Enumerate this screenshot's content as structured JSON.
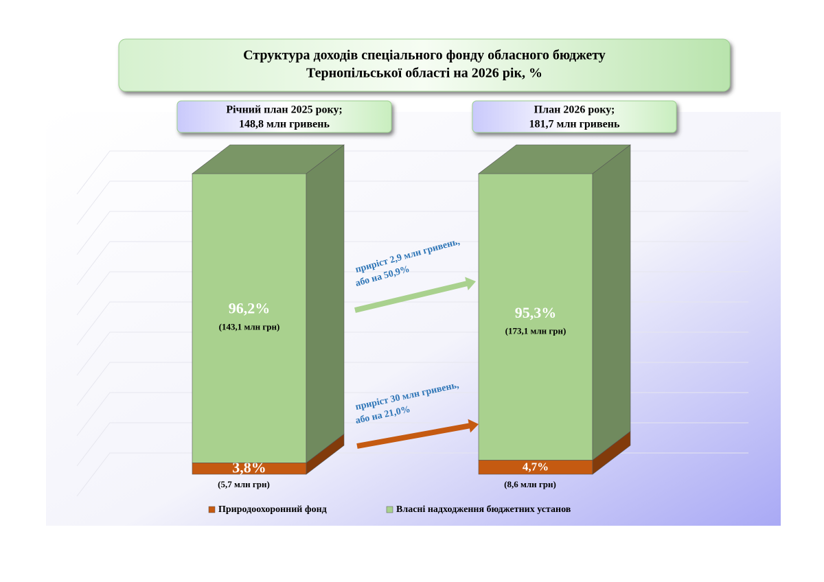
{
  "chart_data": {
    "type": "stacked_bar_3d",
    "title": [
      "Структура доходів спеціального фонду обласного бюджету",
      "Тернопільської області на 2026 рік, %"
    ],
    "categories": [
      "Річний план 2025 року;",
      "План 2026 року;"
    ],
    "category_totals": [
      "148,8 млн гривень",
      "181,7 млн гривень"
    ],
    "ylim": [
      0,
      100
    ],
    "series": [
      {
        "name": "Природоохоронний фонд",
        "color": "#c55a11",
        "values": [
          3.8,
          4.7
        ],
        "value_labels": [
          "3,8%",
          "4,7%"
        ],
        "amount_labels": [
          "(5,7 млн грн)",
          "(8,6 млн грн)"
        ]
      },
      {
        "name": "Власні надходження бюджетних установ",
        "color": "#a9d18e",
        "values": [
          96.2,
          95.3
        ],
        "value_labels": [
          "96,2%",
          "95,3%"
        ],
        "amount_labels": [
          "(143,1 млн грн)",
          "(173,1 млн грн)"
        ]
      }
    ],
    "annotations": [
      {
        "text": [
          "приріст 2,9 млн гривень,",
          "або на 50,9%"
        ],
        "color": "#a9d18e"
      },
      {
        "text": [
          "приріст 30 млн гривень,",
          "або на 21,0%"
        ],
        "color": "#c55a11"
      }
    ]
  }
}
